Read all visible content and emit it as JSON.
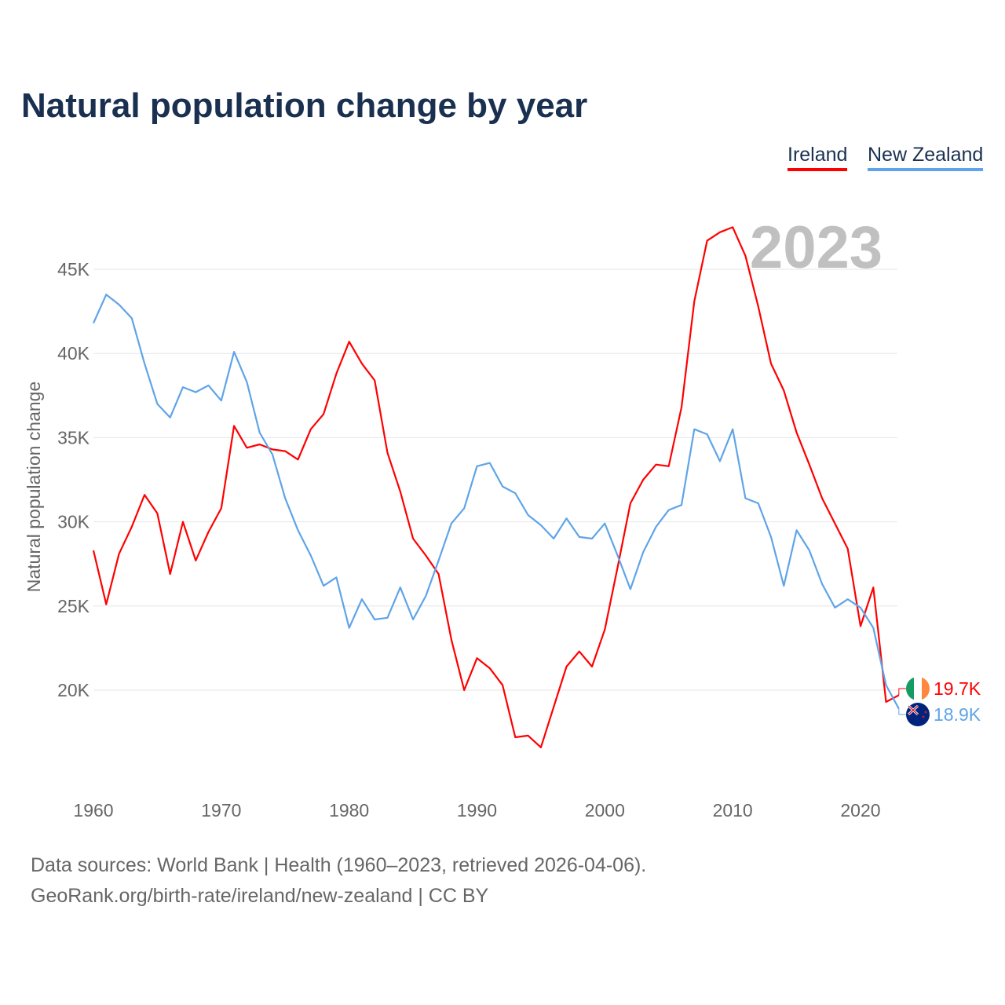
{
  "colors": {
    "ireland": "#ff0000",
    "new_zealand": "#5fa4e8",
    "title": "#1a3050"
  },
  "chart_data": {
    "type": "line",
    "title": "Natural population change by year",
    "ylabel": "Natural population change",
    "xlabel": "",
    "watermark_year": "2023",
    "xlim": [
      1960,
      2023
    ],
    "ylim": [
      15000,
      48000
    ],
    "grid": true,
    "legend_position": "top-right",
    "x_ticks": [
      1960,
      1970,
      1980,
      1990,
      2000,
      2010,
      2020
    ],
    "x_tick_labels": [
      "1960",
      "1970",
      "1980",
      "1990",
      "2000",
      "2010",
      "2020"
    ],
    "y_ticks": [
      20000,
      25000,
      30000,
      35000,
      40000,
      45000
    ],
    "y_tick_labels": [
      "20K",
      "25K",
      "30K",
      "35K",
      "40K",
      "45K"
    ],
    "x": [
      1960,
      1961,
      1962,
      1963,
      1964,
      1965,
      1966,
      1967,
      1968,
      1969,
      1970,
      1971,
      1972,
      1973,
      1974,
      1975,
      1976,
      1977,
      1978,
      1979,
      1980,
      1981,
      1982,
      1983,
      1984,
      1985,
      1986,
      1987,
      1988,
      1989,
      1990,
      1991,
      1992,
      1993,
      1994,
      1995,
      1996,
      1997,
      1998,
      1999,
      2000,
      2001,
      2002,
      2003,
      2004,
      2005,
      2006,
      2007,
      2008,
      2009,
      2010,
      2011,
      2012,
      2013,
      2014,
      2015,
      2016,
      2017,
      2018,
      2019,
      2020,
      2021,
      2022,
      2023
    ],
    "series": [
      {
        "name": "Ireland",
        "end_label": "19.7K",
        "values": [
          28300,
          25100,
          28100,
          29700,
          31600,
          30500,
          26900,
          30000,
          27700,
          29400,
          30800,
          35700,
          34400,
          34600,
          34300,
          34200,
          33700,
          35500,
          36400,
          38800,
          40700,
          39400,
          38400,
          34100,
          31800,
          29000,
          28000,
          26900,
          23000,
          20000,
          21900,
          21300,
          20300,
          17200,
          17300,
          16600,
          19000,
          21400,
          22300,
          21400,
          23600,
          27300,
          31100,
          32500,
          33400,
          33300,
          36800,
          43100,
          46700,
          47200,
          47500,
          45800,
          42800,
          39400,
          37800,
          35300,
          33400,
          31400,
          29900,
          28400,
          23800,
          26100,
          19300,
          19700
        ]
      },
      {
        "name": "New Zealand",
        "end_label": "18.9K",
        "values": [
          41800,
          43500,
          42900,
          42100,
          39400,
          37000,
          36200,
          38000,
          37700,
          38100,
          37200,
          40100,
          38300,
          35300,
          34000,
          31400,
          29500,
          28000,
          26200,
          26700,
          23700,
          25400,
          24200,
          24300,
          26100,
          24200,
          25600,
          27700,
          29900,
          30800,
          33300,
          33500,
          32100,
          31700,
          30400,
          29800,
          29000,
          30200,
          29100,
          29000,
          29900,
          28000,
          26000,
          28200,
          29700,
          30700,
          31000,
          35500,
          35200,
          33600,
          35500,
          31400,
          31100,
          29100,
          26200,
          29500,
          28300,
          26300,
          24900,
          25400,
          24900,
          23700,
          20300,
          18900
        ]
      }
    ]
  },
  "footer": {
    "line1": "Data sources: World Bank | Health (1960–2023, retrieved 2026-04-06).",
    "line2": "GeoRank.org/birth-rate/ireland/new-zealand | CC BY"
  }
}
